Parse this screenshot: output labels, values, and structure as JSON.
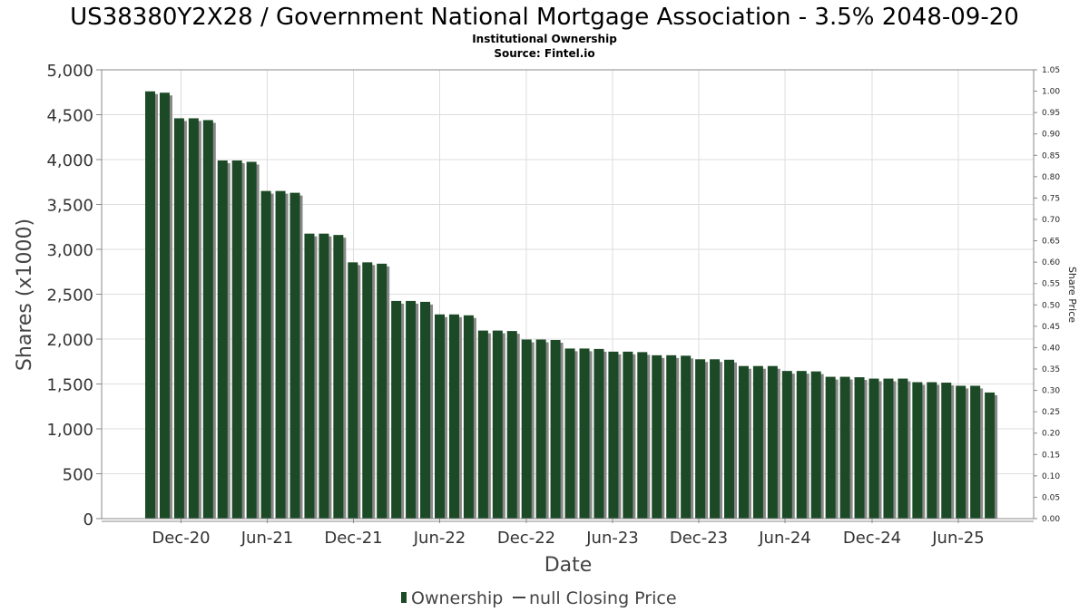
{
  "header": {
    "title": "US38380Y2X28 / Government National Mortgage Association - 3.5% 2048-09-20",
    "subtitle": "Institutional Ownership",
    "source": "Source: Fintel.io"
  },
  "legend": {
    "ownership_label": "Ownership",
    "price_label": "null Closing Price"
  },
  "colors": {
    "bar": "#1d4a26",
    "bar_shadow": "#888888",
    "grid": "#dddddd",
    "frame": "#888888"
  },
  "chart_data": {
    "type": "bar",
    "xlabel": "Date",
    "ylabel": "Shares (x1000)",
    "y2label": "Share Price",
    "ylim": [
      0,
      5000
    ],
    "yticks": [
      "0",
      "500",
      "1,000",
      "1,500",
      "2,000",
      "2,500",
      "3,000",
      "3,500",
      "4,000",
      "4,500",
      "5,000"
    ],
    "y2lim": [
      0,
      1.05
    ],
    "y2ticks": [
      "0.00",
      "0.05",
      "0.10",
      "0.15",
      "0.20",
      "0.25",
      "0.30",
      "0.35",
      "0.40",
      "0.45",
      "0.50",
      "0.55",
      "0.60",
      "0.65",
      "0.70",
      "0.75",
      "0.80",
      "0.85",
      "0.90",
      "0.95",
      "1.00",
      "1.05"
    ],
    "xticks": [
      "Dec-20",
      "Jun-21",
      "Dec-21",
      "Jun-22",
      "Dec-22",
      "Jun-23",
      "Dec-23",
      "Jun-24",
      "Dec-24",
      "Jun-25"
    ],
    "legend_position": "bottom",
    "grid": true,
    "series": [
      {
        "name": "Ownership",
        "values": [
          4760,
          4745,
          4460,
          4460,
          4440,
          3990,
          3990,
          3975,
          3650,
          3650,
          3630,
          3175,
          3175,
          3160,
          2855,
          2855,
          2840,
          2425,
          2425,
          2415,
          2275,
          2275,
          2265,
          2095,
          2095,
          2090,
          1995,
          1995,
          1990,
          1895,
          1895,
          1890,
          1860,
          1860,
          1855,
          1820,
          1820,
          1815,
          1775,
          1775,
          1770,
          1700,
          1700,
          1700,
          1645,
          1645,
          1640,
          1580,
          1580,
          1575,
          1560,
          1560,
          1560,
          1520,
          1520,
          1515,
          1480,
          1480,
          1405
        ]
      },
      {
        "name": "null Closing Price",
        "values": []
      }
    ]
  }
}
